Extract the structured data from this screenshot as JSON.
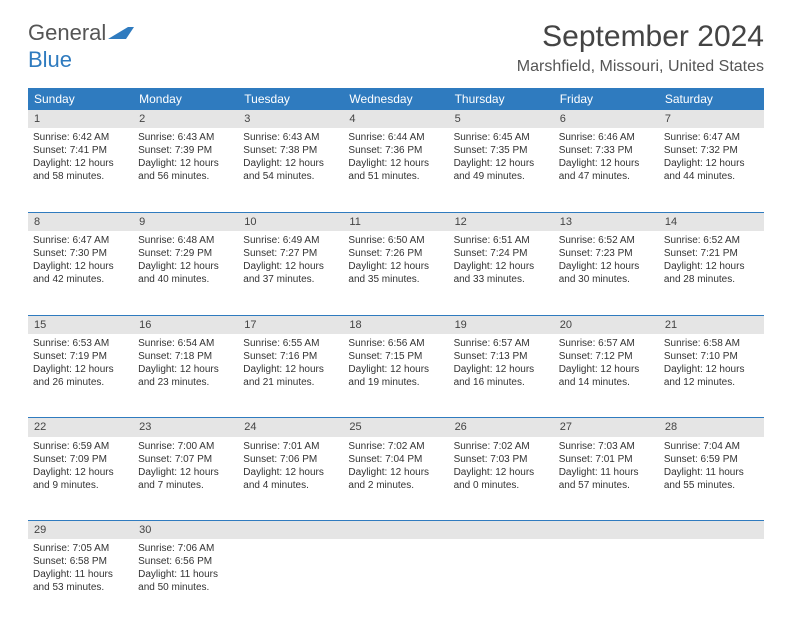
{
  "logo": {
    "general": "General",
    "blue": "Blue"
  },
  "title": "September 2024",
  "location": "Marshfield, Missouri, United States",
  "colors": {
    "header_bg": "#2f7bbf",
    "daynum_bg": "#e5e5e5",
    "rule": "#2f7bbf",
    "text": "#333333"
  },
  "typography": {
    "title_fontsize": 30,
    "header_fontsize": 12,
    "cell_fontsize": 10
  },
  "day_headers": [
    "Sunday",
    "Monday",
    "Tuesday",
    "Wednesday",
    "Thursday",
    "Friday",
    "Saturday"
  ],
  "weeks": [
    {
      "nums": [
        "1",
        "2",
        "3",
        "4",
        "5",
        "6",
        "7"
      ],
      "cells": [
        {
          "sunrise": "Sunrise: 6:42 AM",
          "sunset": "Sunset: 7:41 PM",
          "daylight1": "Daylight: 12 hours",
          "daylight2": "and 58 minutes."
        },
        {
          "sunrise": "Sunrise: 6:43 AM",
          "sunset": "Sunset: 7:39 PM",
          "daylight1": "Daylight: 12 hours",
          "daylight2": "and 56 minutes."
        },
        {
          "sunrise": "Sunrise: 6:43 AM",
          "sunset": "Sunset: 7:38 PM",
          "daylight1": "Daylight: 12 hours",
          "daylight2": "and 54 minutes."
        },
        {
          "sunrise": "Sunrise: 6:44 AM",
          "sunset": "Sunset: 7:36 PM",
          "daylight1": "Daylight: 12 hours",
          "daylight2": "and 51 minutes."
        },
        {
          "sunrise": "Sunrise: 6:45 AM",
          "sunset": "Sunset: 7:35 PM",
          "daylight1": "Daylight: 12 hours",
          "daylight2": "and 49 minutes."
        },
        {
          "sunrise": "Sunrise: 6:46 AM",
          "sunset": "Sunset: 7:33 PM",
          "daylight1": "Daylight: 12 hours",
          "daylight2": "and 47 minutes."
        },
        {
          "sunrise": "Sunrise: 6:47 AM",
          "sunset": "Sunset: 7:32 PM",
          "daylight1": "Daylight: 12 hours",
          "daylight2": "and 44 minutes."
        }
      ]
    },
    {
      "nums": [
        "8",
        "9",
        "10",
        "11",
        "12",
        "13",
        "14"
      ],
      "cells": [
        {
          "sunrise": "Sunrise: 6:47 AM",
          "sunset": "Sunset: 7:30 PM",
          "daylight1": "Daylight: 12 hours",
          "daylight2": "and 42 minutes."
        },
        {
          "sunrise": "Sunrise: 6:48 AM",
          "sunset": "Sunset: 7:29 PM",
          "daylight1": "Daylight: 12 hours",
          "daylight2": "and 40 minutes."
        },
        {
          "sunrise": "Sunrise: 6:49 AM",
          "sunset": "Sunset: 7:27 PM",
          "daylight1": "Daylight: 12 hours",
          "daylight2": "and 37 minutes."
        },
        {
          "sunrise": "Sunrise: 6:50 AM",
          "sunset": "Sunset: 7:26 PM",
          "daylight1": "Daylight: 12 hours",
          "daylight2": "and 35 minutes."
        },
        {
          "sunrise": "Sunrise: 6:51 AM",
          "sunset": "Sunset: 7:24 PM",
          "daylight1": "Daylight: 12 hours",
          "daylight2": "and 33 minutes."
        },
        {
          "sunrise": "Sunrise: 6:52 AM",
          "sunset": "Sunset: 7:23 PM",
          "daylight1": "Daylight: 12 hours",
          "daylight2": "and 30 minutes."
        },
        {
          "sunrise": "Sunrise: 6:52 AM",
          "sunset": "Sunset: 7:21 PM",
          "daylight1": "Daylight: 12 hours",
          "daylight2": "and 28 minutes."
        }
      ]
    },
    {
      "nums": [
        "15",
        "16",
        "17",
        "18",
        "19",
        "20",
        "21"
      ],
      "cells": [
        {
          "sunrise": "Sunrise: 6:53 AM",
          "sunset": "Sunset: 7:19 PM",
          "daylight1": "Daylight: 12 hours",
          "daylight2": "and 26 minutes."
        },
        {
          "sunrise": "Sunrise: 6:54 AM",
          "sunset": "Sunset: 7:18 PM",
          "daylight1": "Daylight: 12 hours",
          "daylight2": "and 23 minutes."
        },
        {
          "sunrise": "Sunrise: 6:55 AM",
          "sunset": "Sunset: 7:16 PM",
          "daylight1": "Daylight: 12 hours",
          "daylight2": "and 21 minutes."
        },
        {
          "sunrise": "Sunrise: 6:56 AM",
          "sunset": "Sunset: 7:15 PM",
          "daylight1": "Daylight: 12 hours",
          "daylight2": "and 19 minutes."
        },
        {
          "sunrise": "Sunrise: 6:57 AM",
          "sunset": "Sunset: 7:13 PM",
          "daylight1": "Daylight: 12 hours",
          "daylight2": "and 16 minutes."
        },
        {
          "sunrise": "Sunrise: 6:57 AM",
          "sunset": "Sunset: 7:12 PM",
          "daylight1": "Daylight: 12 hours",
          "daylight2": "and 14 minutes."
        },
        {
          "sunrise": "Sunrise: 6:58 AM",
          "sunset": "Sunset: 7:10 PM",
          "daylight1": "Daylight: 12 hours",
          "daylight2": "and 12 minutes."
        }
      ]
    },
    {
      "nums": [
        "22",
        "23",
        "24",
        "25",
        "26",
        "27",
        "28"
      ],
      "cells": [
        {
          "sunrise": "Sunrise: 6:59 AM",
          "sunset": "Sunset: 7:09 PM",
          "daylight1": "Daylight: 12 hours",
          "daylight2": "and 9 minutes."
        },
        {
          "sunrise": "Sunrise: 7:00 AM",
          "sunset": "Sunset: 7:07 PM",
          "daylight1": "Daylight: 12 hours",
          "daylight2": "and 7 minutes."
        },
        {
          "sunrise": "Sunrise: 7:01 AM",
          "sunset": "Sunset: 7:06 PM",
          "daylight1": "Daylight: 12 hours",
          "daylight2": "and 4 minutes."
        },
        {
          "sunrise": "Sunrise: 7:02 AM",
          "sunset": "Sunset: 7:04 PM",
          "daylight1": "Daylight: 12 hours",
          "daylight2": "and 2 minutes."
        },
        {
          "sunrise": "Sunrise: 7:02 AM",
          "sunset": "Sunset: 7:03 PM",
          "daylight1": "Daylight: 12 hours",
          "daylight2": "and 0 minutes."
        },
        {
          "sunrise": "Sunrise: 7:03 AM",
          "sunset": "Sunset: 7:01 PM",
          "daylight1": "Daylight: 11 hours",
          "daylight2": "and 57 minutes."
        },
        {
          "sunrise": "Sunrise: 7:04 AM",
          "sunset": "Sunset: 6:59 PM",
          "daylight1": "Daylight: 11 hours",
          "daylight2": "and 55 minutes."
        }
      ]
    },
    {
      "nums": [
        "29",
        "30",
        "",
        "",
        "",
        "",
        ""
      ],
      "cells": [
        {
          "sunrise": "Sunrise: 7:05 AM",
          "sunset": "Sunset: 6:58 PM",
          "daylight1": "Daylight: 11 hours",
          "daylight2": "and 53 minutes."
        },
        {
          "sunrise": "Sunrise: 7:06 AM",
          "sunset": "Sunset: 6:56 PM",
          "daylight1": "Daylight: 11 hours",
          "daylight2": "and 50 minutes."
        },
        null,
        null,
        null,
        null,
        null
      ]
    }
  ]
}
